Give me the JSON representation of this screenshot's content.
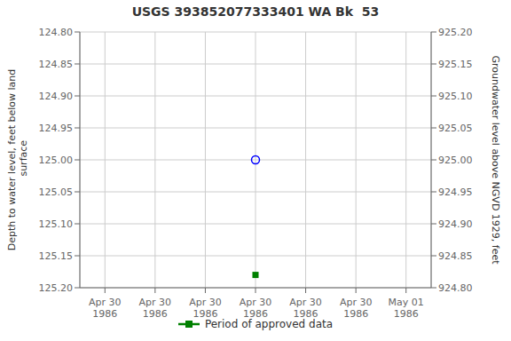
{
  "chart_data": {
    "type": "scatter",
    "title": "USGS 393852077333401 WA Bk  53",
    "y_label": "Depth to water level, feet below land\n surface",
    "y2_label": "Groundwater level above NGVD 1929, feet",
    "categories": [
      "Apr 30\n1986",
      "Apr 30\n1986",
      "Apr 30\n1986",
      "Apr 30\n1986",
      "Apr 30\n1986",
      "Apr 30\n1986",
      "May 01\n1986"
    ],
    "series": [
      {
        "color": "blue",
        "marker": "circle_open",
        "values": [
          null,
          null,
          null,
          125.0,
          null,
          null,
          null
        ]
      },
      {
        "name": "Period of approved data",
        "color": "#008000",
        "marker": "square",
        "values": [
          null,
          null,
          null,
          125.18,
          null,
          null,
          null
        ]
      }
    ],
    "ylim": [
      125.2,
      124.8
    ],
    "yticks": [
      {
        "value": 124.8,
        "label": "124.80"
      },
      {
        "value": 124.85,
        "label": "124.85"
      },
      {
        "value": 124.9,
        "label": "124.90"
      },
      {
        "value": 124.95,
        "label": "124.95"
      },
      {
        "value": 125.0,
        "label": "125.00"
      },
      {
        "value": 125.05,
        "label": "125.05"
      },
      {
        "value": 125.1,
        "label": "125.10"
      },
      {
        "value": 125.15,
        "label": "125.15"
      },
      {
        "value": 125.2,
        "label": "125.20"
      }
    ],
    "y2lim": [
      924.8,
      925.2
    ],
    "y2ticks": [
      {
        "value": 925.2,
        "label": "925.20"
      },
      {
        "value": 925.15,
        "label": "925.15"
      },
      {
        "value": 925.1,
        "label": "925.10"
      },
      {
        "value": 925.05,
        "label": "925.05"
      },
      {
        "value": 925.0,
        "label": "925.00"
      },
      {
        "value": 924.95,
        "label": "924.95"
      },
      {
        "value": 924.9,
        "label": "924.90"
      },
      {
        "value": 924.85,
        "label": "924.85"
      },
      {
        "value": 924.8,
        "label": "924.80"
      }
    ],
    "grid": true,
    "legend": "bottom"
  }
}
